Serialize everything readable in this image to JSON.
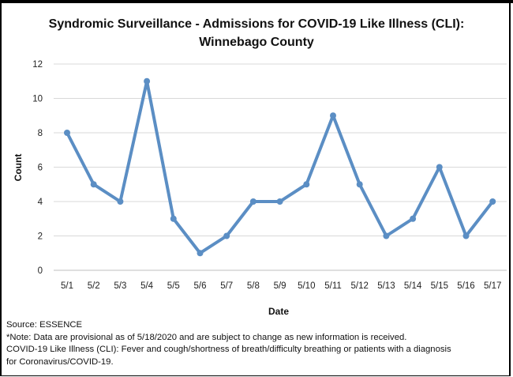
{
  "chart_data": {
    "type": "line",
    "title_line1": "Syndromic Surveillance - Admissions for COVID-19 Like Illness (CLI):",
    "title_line2": "Winnebago County",
    "xlabel": "Date",
    "ylabel": "Count",
    "categories": [
      "5/1",
      "5/2",
      "5/3",
      "5/4",
      "5/5",
      "5/6",
      "5/7",
      "5/8",
      "5/9",
      "5/10",
      "5/11",
      "5/12",
      "5/13",
      "5/14",
      "5/15",
      "5/16",
      "5/17"
    ],
    "values": [
      8,
      5,
      4,
      11,
      3,
      1,
      2,
      4,
      4,
      5,
      9,
      5,
      2,
      3,
      6,
      2,
      4
    ],
    "ylim": [
      0,
      12
    ],
    "yticks": [
      0,
      2,
      4,
      6,
      8,
      10,
      12
    ],
    "line_color": "#5b8ec4",
    "grid": true,
    "legend": "none"
  },
  "notes": {
    "source": "Source: ESSENCE",
    "provisional": "*Note: Data are provisional as of 5/18/2020 and are subject to change as new information is received.",
    "definition_line1": "COVID-19 Like Illness (CLI): Fever and cough/shortness of breath/difficulty breathing or patients with a diagnosis",
    "definition_line2": "for Coronavirus/COVID-19."
  }
}
